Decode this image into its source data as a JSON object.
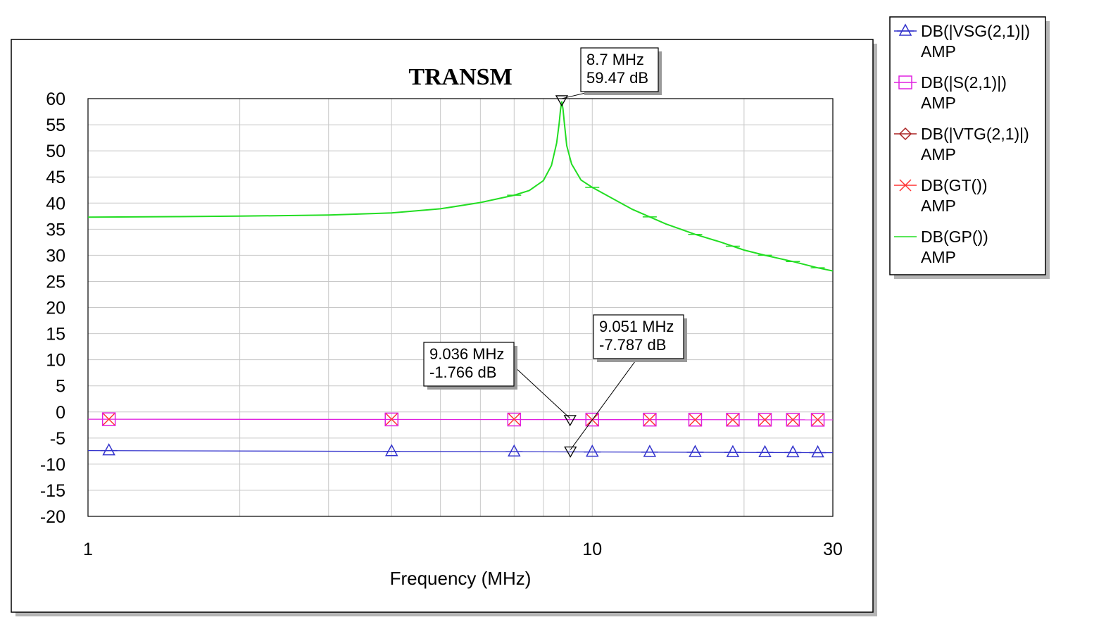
{
  "chart_data": {
    "type": "line",
    "title": "TRANSM",
    "xlabel": "Frequency (MHz)",
    "ylabel": "",
    "x_scale": "log",
    "xlim": [
      1,
      30
    ],
    "ylim": [
      -20,
      60
    ],
    "x_ticks": [
      "1",
      "10",
      "30"
    ],
    "x_tick_values": [
      1,
      10,
      30
    ],
    "y_ticks": [
      "60",
      "55",
      "50",
      "45",
      "40",
      "35",
      "30",
      "25",
      "20",
      "15",
      "10",
      "5",
      "0",
      "-5",
      "-10",
      "-15",
      "-20"
    ],
    "y_tick_values": [
      60,
      55,
      50,
      45,
      40,
      35,
      30,
      25,
      20,
      15,
      10,
      5,
      0,
      -5,
      -10,
      -15,
      -20
    ],
    "grid": true,
    "legend_position": "right",
    "series": [
      {
        "name": "DB(|VSG(2,1)|)",
        "unit": "AMP",
        "color": "#3333cc",
        "marker": "triangle",
        "x": [
          1,
          30
        ],
        "y": [
          -7.4,
          -7.8
        ],
        "marker_x": [
          1.1,
          4,
          7,
          10,
          13,
          16,
          19,
          22,
          25,
          28
        ]
      },
      {
        "name": "DB(|S(2,1)|)",
        "unit": "AMP",
        "color": "#e020e0",
        "marker": "square",
        "x": [
          1,
          30
        ],
        "y": [
          -1.4,
          -1.5
        ],
        "marker_x": [
          1.1,
          4,
          7,
          10,
          13,
          16,
          19,
          22,
          25,
          28
        ]
      },
      {
        "name": "DB(|VTG(2,1)|)",
        "unit": "AMP",
        "color": "#aa2222",
        "marker": "diamond",
        "x": [],
        "y": [],
        "marker_x": []
      },
      {
        "name": "DB(GT())",
        "unit": "AMP",
        "color": "#ff3333",
        "marker": "x",
        "x": [
          1.1,
          4,
          7,
          10,
          13,
          16,
          19,
          22,
          25,
          28
        ],
        "y": [
          -1.4,
          -1.4,
          -1.4,
          -1.5,
          -1.5,
          -1.5,
          -1.5,
          -1.5,
          -1.5,
          -1.5
        ],
        "marker_x": [
          1.1,
          4,
          7,
          10,
          13,
          16,
          19,
          22,
          25,
          28
        ]
      },
      {
        "name": "DB(GP())",
        "unit": "AMP",
        "color": "#22dd22",
        "marker": "none",
        "x": [
          1,
          1.5,
          2,
          3,
          4,
          5,
          6,
          7,
          7.5,
          8,
          8.3,
          8.5,
          8.6,
          8.65,
          8.7,
          8.75,
          8.8,
          8.9,
          9.1,
          9.5,
          10,
          12,
          14,
          16,
          18,
          20,
          22,
          25,
          28,
          30
        ],
        "y": [
          37.3,
          37.4,
          37.5,
          37.7,
          38.1,
          38.9,
          40.1,
          41.5,
          42.4,
          44.3,
          47.2,
          51.5,
          55.3,
          57.8,
          59.47,
          58.0,
          55.5,
          51.0,
          47.5,
          44.4,
          43.0,
          38.8,
          36.0,
          34.0,
          32.5,
          31.0,
          30.0,
          28.8,
          27.6,
          27.0
        ]
      }
    ],
    "annotations": [
      {
        "freq_label": "8.7 MHz",
        "value_label": "59.47 dB",
        "x": 8.7,
        "y": 59.47
      },
      {
        "freq_label": "9.036 MHz",
        "value_label": "-1.766 dB",
        "x": 9.036,
        "y": -1.766
      },
      {
        "freq_label": "9.051 MHz",
        "value_label": "-7.787 dB",
        "x": 9.051,
        "y": -7.787
      }
    ]
  }
}
